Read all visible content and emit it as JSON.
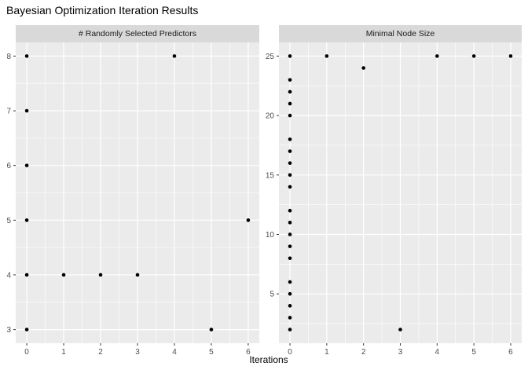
{
  "chart_data": {
    "type": "scatter",
    "title": "Bayesian Optimization Iteration Results",
    "xlabel": "Iterations",
    "ylabel": "",
    "legend": "none",
    "grid": true,
    "point_color": "#000000",
    "facets": [
      {
        "label": "# Randomly Selected Predictors",
        "x_ticks": [
          0,
          1,
          2,
          3,
          4,
          5,
          6
        ],
        "y_ticks": [
          3,
          4,
          5,
          6,
          7,
          8
        ],
        "xlim": [
          -0.3,
          6.3
        ],
        "ylim": [
          2.75,
          8.25
        ],
        "points": [
          [
            0,
            3
          ],
          [
            0,
            4
          ],
          [
            0,
            5
          ],
          [
            0,
            6
          ],
          [
            0,
            7
          ],
          [
            0,
            8
          ],
          [
            1,
            4
          ],
          [
            2,
            4
          ],
          [
            3,
            4
          ],
          [
            4,
            8
          ],
          [
            5,
            3
          ],
          [
            6,
            5
          ]
        ]
      },
      {
        "label": "Minimal Node Size",
        "x_ticks": [
          0,
          1,
          2,
          3,
          4,
          5,
          6
        ],
        "y_ticks": [
          5,
          10,
          15,
          20,
          25
        ],
        "xlim": [
          -0.3,
          6.3
        ],
        "ylim": [
          0.85,
          26.15
        ],
        "points": [
          [
            0,
            2
          ],
          [
            0,
            3
          ],
          [
            0,
            4
          ],
          [
            0,
            5
          ],
          [
            0,
            6
          ],
          [
            0,
            8
          ],
          [
            0,
            9
          ],
          [
            0,
            10
          ],
          [
            0,
            11
          ],
          [
            0,
            12
          ],
          [
            0,
            14
          ],
          [
            0,
            15
          ],
          [
            0,
            16
          ],
          [
            0,
            17
          ],
          [
            0,
            18
          ],
          [
            0,
            20
          ],
          [
            0,
            21
          ],
          [
            0,
            22
          ],
          [
            0,
            23
          ],
          [
            0,
            25
          ],
          [
            1,
            25
          ],
          [
            2,
            24
          ],
          [
            3,
            2
          ],
          [
            4,
            25
          ],
          [
            5,
            25
          ],
          [
            6,
            25
          ]
        ]
      }
    ]
  },
  "colors": {
    "panel_bg": "#ebebeb",
    "strip_bg": "#d9d9d9",
    "grid": "#ffffff",
    "axis_text": "#4d4d4d",
    "tick_mark": "#333333",
    "strip_text": "#1a1a1a",
    "title_text": "#000000",
    "point": "#000000"
  }
}
